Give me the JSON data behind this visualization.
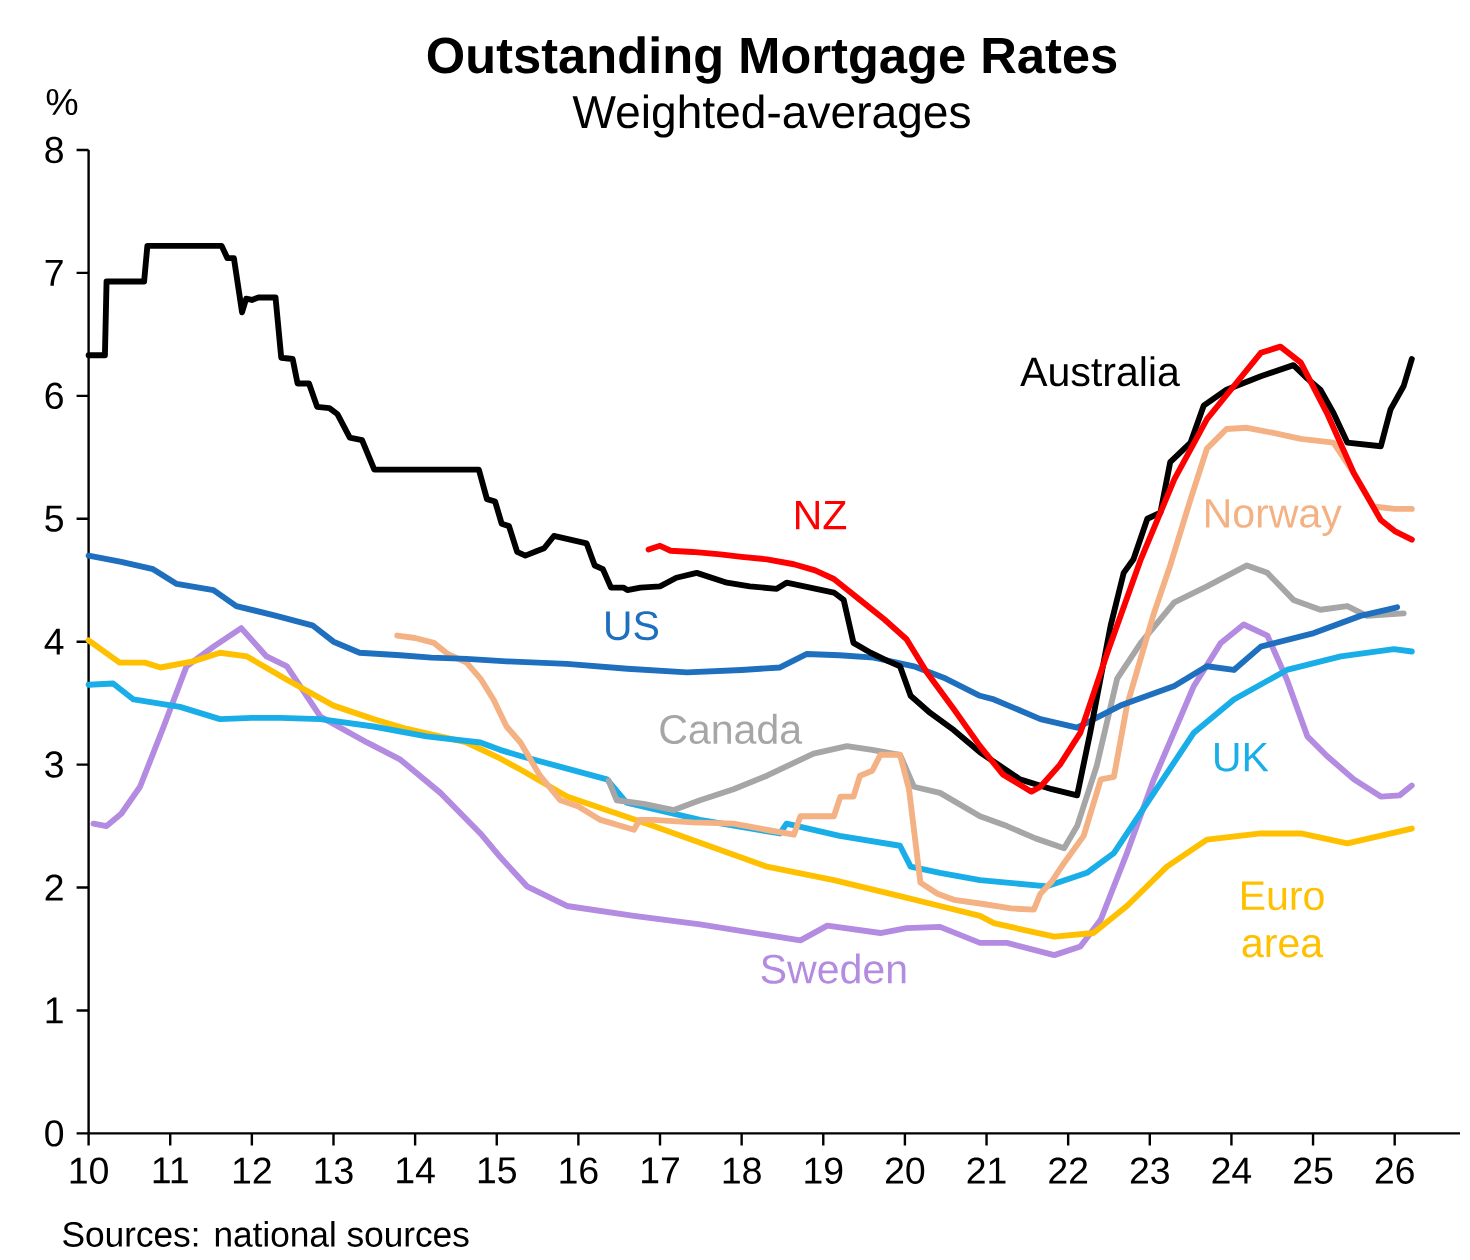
{
  "chart_data": {
    "type": "line",
    "title": "Outstanding Mortgage Rates",
    "subtitle": "Weighted-averages",
    "ylabel": "%",
    "annotations": [
      "Sources: national sources"
    ],
    "xlim": [
      10,
      26.8
    ],
    "ylim": [
      0,
      8
    ],
    "xticks": [
      10,
      11,
      12,
      13,
      14,
      15,
      16,
      17,
      18,
      19,
      20,
      21,
      22,
      23,
      24,
      25,
      26
    ],
    "yticks": [
      0,
      1,
      2,
      3,
      4,
      5,
      6,
      7,
      8
    ],
    "line_style": "solid",
    "series": [
      {
        "name": "Sweden",
        "color": "#b38be0",
        "x": [
          10.06,
          10.22,
          10.4,
          10.63,
          10.92,
          11.2,
          11.53,
          11.87,
          12.18,
          12.43,
          12.84,
          13.41,
          13.82,
          14.31,
          14.8,
          15.04,
          15.37,
          15.86,
          16.68,
          17.49,
          18.72,
          19.05,
          19.7,
          20.02,
          20.43,
          20.92,
          21.25,
          21.83,
          22.15,
          22.4,
          22.72,
          23.05,
          23.54,
          23.87,
          24.15,
          24.44,
          24.68,
          24.93,
          25.17,
          25.5,
          25.83,
          26.06,
          26.21
        ],
        "values": [
          2.52,
          2.5,
          2.6,
          2.82,
          3.31,
          3.8,
          3.96,
          4.11,
          3.88,
          3.8,
          3.39,
          3.18,
          3.04,
          2.77,
          2.44,
          2.25,
          2.01,
          1.85,
          1.77,
          1.7,
          1.57,
          1.69,
          1.63,
          1.67,
          1.68,
          1.55,
          1.55,
          1.45,
          1.52,
          1.74,
          2.28,
          2.88,
          3.64,
          3.99,
          4.14,
          4.05,
          3.69,
          3.23,
          3.07,
          2.88,
          2.74,
          2.75,
          2.83
        ]
      },
      {
        "name": "Euro area",
        "color": "#ffc000",
        "x": [
          10.0,
          10.38,
          10.69,
          10.88,
          11.28,
          11.61,
          11.94,
          12.43,
          13.0,
          13.49,
          13.9,
          14.63,
          15.04,
          15.29,
          15.86,
          16.92,
          18.31,
          19.13,
          19.94,
          20.43,
          20.92,
          21.09,
          21.83,
          22.31,
          22.72,
          23.21,
          23.7,
          24.36,
          24.85,
          25.42,
          26.21
        ],
        "values": [
          4.01,
          3.83,
          3.83,
          3.79,
          3.84,
          3.91,
          3.88,
          3.69,
          3.48,
          3.37,
          3.29,
          3.18,
          3.05,
          2.96,
          2.74,
          2.5,
          2.17,
          2.06,
          1.93,
          1.85,
          1.77,
          1.71,
          1.6,
          1.63,
          1.85,
          2.17,
          2.39,
          2.44,
          2.44,
          2.36,
          2.48
        ]
      },
      {
        "name": "UK",
        "color": "#1aaee8",
        "x": [
          10.0,
          10.3,
          10.55,
          11.12,
          11.61,
          12.0,
          12.35,
          12.84,
          13.49,
          14.14,
          14.8,
          15.04,
          15.29,
          16.35,
          16.59,
          17.49,
          18.47,
          18.55,
          19.2,
          19.94,
          20.07,
          20.43,
          20.92,
          21.25,
          21.74,
          22.23,
          22.56,
          23.05,
          23.54,
          24.03,
          24.68,
          25.34,
          25.99,
          26.21
        ],
        "values": [
          3.65,
          3.66,
          3.53,
          3.47,
          3.37,
          3.38,
          3.38,
          3.37,
          3.31,
          3.23,
          3.18,
          3.12,
          3.07,
          2.88,
          2.69,
          2.55,
          2.44,
          2.52,
          2.42,
          2.34,
          2.17,
          2.12,
          2.06,
          2.04,
          2.01,
          2.12,
          2.28,
          2.77,
          3.26,
          3.53,
          3.77,
          3.88,
          3.94,
          3.92
        ]
      },
      {
        "name": "Canada",
        "color": "#a6a6a6",
        "x": [
          16.37,
          16.47,
          16.8,
          17.17,
          17.49,
          17.9,
          18.31,
          18.88,
          19.29,
          19.6,
          19.94,
          20.11,
          20.43,
          20.92,
          21.25,
          21.6,
          21.95,
          22.11,
          22.35,
          22.6,
          22.89,
          23.3,
          23.7,
          24.19,
          24.44,
          24.76,
          25.09,
          25.42,
          25.66,
          26.11
        ],
        "values": [
          2.87,
          2.71,
          2.68,
          2.63,
          2.71,
          2.8,
          2.91,
          3.09,
          3.15,
          3.12,
          3.08,
          2.82,
          2.77,
          2.58,
          2.5,
          2.4,
          2.32,
          2.5,
          2.99,
          3.7,
          3.99,
          4.32,
          4.45,
          4.62,
          4.56,
          4.34,
          4.26,
          4.29,
          4.21,
          4.23
        ]
      },
      {
        "name": "Norway",
        "color": "#f4b183",
        "x": [
          13.78,
          14.0,
          14.23,
          14.4,
          14.63,
          14.8,
          14.96,
          15.12,
          15.29,
          15.53,
          15.78,
          16.0,
          16.27,
          16.68,
          16.75,
          16.92,
          17.4,
          17.9,
          18.3,
          18.64,
          18.72,
          19.13,
          19.21,
          19.37,
          19.45,
          19.6,
          19.7,
          19.94,
          20.05,
          20.19,
          20.4,
          20.6,
          20.92,
          21.3,
          21.58,
          21.66,
          21.8,
          21.95,
          22.19,
          22.4,
          22.56,
          22.72,
          23.05,
          23.25,
          23.5,
          23.7,
          23.94,
          24.19,
          24.5,
          24.85,
          25.25,
          25.5,
          25.74,
          26.0,
          26.21
        ],
        "values": [
          4.05,
          4.03,
          3.99,
          3.9,
          3.83,
          3.7,
          3.53,
          3.31,
          3.18,
          2.91,
          2.71,
          2.66,
          2.55,
          2.47,
          2.55,
          2.55,
          2.53,
          2.52,
          2.47,
          2.43,
          2.58,
          2.58,
          2.74,
          2.74,
          2.91,
          2.95,
          3.08,
          3.08,
          2.8,
          2.04,
          1.95,
          1.9,
          1.87,
          1.83,
          1.82,
          1.95,
          2.05,
          2.2,
          2.42,
          2.88,
          2.9,
          3.48,
          4.23,
          4.62,
          5.16,
          5.57,
          5.73,
          5.74,
          5.7,
          5.65,
          5.62,
          5.37,
          5.1,
          5.08,
          5.08
        ]
      },
      {
        "name": "US",
        "color": "#1f6fbf",
        "x": [
          10.0,
          10.4,
          10.79,
          11.08,
          11.53,
          11.81,
          12.3,
          12.75,
          13.0,
          13.32,
          13.82,
          14.2,
          14.63,
          15.12,
          15.86,
          16.6,
          17.33,
          18.0,
          18.47,
          18.8,
          19.2,
          19.62,
          20.11,
          20.5,
          20.92,
          21.09,
          21.66,
          22.11,
          22.64,
          23.3,
          23.7,
          24.03,
          24.36,
          25.01,
          25.58,
          26.03
        ],
        "values": [
          4.7,
          4.65,
          4.59,
          4.47,
          4.42,
          4.29,
          4.21,
          4.13,
          4.0,
          3.91,
          3.89,
          3.87,
          3.86,
          3.84,
          3.82,
          3.78,
          3.75,
          3.77,
          3.79,
          3.9,
          3.89,
          3.87,
          3.8,
          3.7,
          3.56,
          3.53,
          3.37,
          3.3,
          3.48,
          3.64,
          3.8,
          3.77,
          3.96,
          4.07,
          4.21,
          4.28
        ]
      },
      {
        "name": "Australia",
        "color": "#000000",
        "x": [
          10.0,
          10.2,
          10.22,
          10.68,
          10.72,
          11.63,
          11.7,
          11.78,
          11.88,
          11.93,
          12.0,
          12.08,
          12.29,
          12.36,
          12.5,
          12.56,
          12.7,
          12.8,
          12.95,
          13.05,
          13.2,
          13.35,
          13.5,
          14.78,
          14.88,
          14.98,
          15.06,
          15.15,
          15.25,
          15.35,
          15.5,
          15.58,
          15.7,
          16.1,
          16.2,
          16.3,
          16.4,
          16.55,
          16.6,
          16.76,
          17.0,
          17.2,
          17.45,
          17.82,
          18.1,
          18.43,
          18.55,
          19.13,
          19.25,
          19.37,
          19.58,
          19.8,
          19.94,
          20.07,
          20.31,
          20.6,
          20.92,
          21.41,
          21.8,
          22.11,
          22.27,
          22.52,
          22.68,
          22.8,
          22.97,
          23.13,
          23.25,
          23.5,
          23.66,
          23.94,
          24.36,
          24.76,
          24.93,
          25.09,
          25.25,
          25.42,
          25.83,
          25.95,
          26.11,
          26.21
        ],
        "values": [
          6.33,
          6.33,
          6.93,
          6.93,
          7.22,
          7.22,
          7.12,
          7.12,
          6.68,
          6.79,
          6.78,
          6.8,
          6.8,
          6.31,
          6.3,
          6.1,
          6.1,
          5.91,
          5.9,
          5.85,
          5.66,
          5.64,
          5.4,
          5.4,
          5.16,
          5.14,
          4.96,
          4.94,
          4.73,
          4.7,
          4.74,
          4.76,
          4.86,
          4.8,
          4.62,
          4.59,
          4.44,
          4.44,
          4.42,
          4.44,
          4.45,
          4.52,
          4.56,
          4.48,
          4.45,
          4.43,
          4.48,
          4.4,
          4.34,
          3.99,
          3.91,
          3.84,
          3.8,
          3.56,
          3.42,
          3.28,
          3.1,
          2.88,
          2.8,
          2.75,
          3.26,
          4.13,
          4.56,
          4.67,
          5.0,
          5.05,
          5.46,
          5.62,
          5.92,
          6.05,
          6.16,
          6.25,
          6.14,
          6.05,
          5.86,
          5.62,
          5.59,
          5.89,
          6.08,
          6.3
        ]
      },
      {
        "name": "NZ",
        "color": "#ff0000",
        "x": [
          16.86,
          17.0,
          17.13,
          17.4,
          17.74,
          18.0,
          18.31,
          18.64,
          18.9,
          19.13,
          19.45,
          19.75,
          20.02,
          20.27,
          20.6,
          20.92,
          21.2,
          21.55,
          21.66,
          21.9,
          22.15,
          22.48,
          22.89,
          23.3,
          23.7,
          24.03,
          24.36,
          24.6,
          24.85,
          25.17,
          25.5,
          25.83,
          26.0,
          26.21
        ],
        "values": [
          4.75,
          4.78,
          4.74,
          4.73,
          4.71,
          4.69,
          4.67,
          4.63,
          4.58,
          4.51,
          4.34,
          4.18,
          4.02,
          3.75,
          3.45,
          3.15,
          2.92,
          2.78,
          2.82,
          3.0,
          3.26,
          3.91,
          4.67,
          5.32,
          5.81,
          6.08,
          6.35,
          6.4,
          6.27,
          5.86,
          5.37,
          4.99,
          4.9,
          4.83
        ]
      }
    ]
  }
}
